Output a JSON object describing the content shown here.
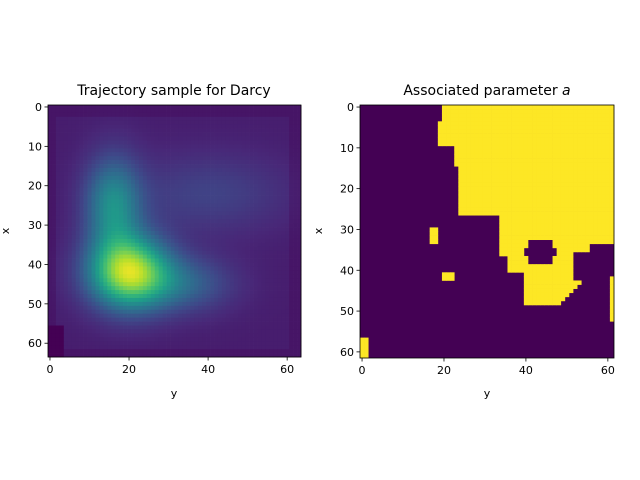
{
  "chart_data": [
    {
      "type": "heatmap",
      "title": "Trajectory sample for Darcy",
      "xlabel": "y",
      "ylabel": "x",
      "grid": false,
      "colormap": "viridis",
      "y_axis_inverted": true,
      "xlim": [
        -0.5,
        63.5
      ],
      "ylim": [
        63.5,
        -0.5
      ],
      "xticks": [
        0,
        20,
        40,
        60
      ],
      "yticks": [
        0,
        10,
        20,
        30,
        40,
        50,
        60
      ],
      "shape": [
        64,
        64
      ],
      "field_description": {
        "peak_value_location": [
          20,
          42
        ],
        "background_level": "low",
        "upper_right_band_level": "medium-low",
        "bottom_left_corner": "minimum"
      },
      "value_range": [
        0,
        1
      ]
    },
    {
      "type": "heatmap",
      "title": "Associated parameter ",
      "title_math": "a",
      "xlabel": "y",
      "ylabel": "x",
      "grid": false,
      "colormap": "binary-viridis",
      "colors": {
        "low": "#440154",
        "high": "#fde725"
      },
      "y_axis_inverted": true,
      "xlim": [
        -0.5,
        61.5
      ],
      "ylim": [
        61.5,
        -0.5
      ],
      "xticks": [
        0,
        20,
        40,
        60
      ],
      "yticks": [
        0,
        10,
        20,
        30,
        40,
        50,
        60
      ],
      "shape": [
        62,
        62
      ],
      "values": [
        0,
        1
      ]
    }
  ]
}
